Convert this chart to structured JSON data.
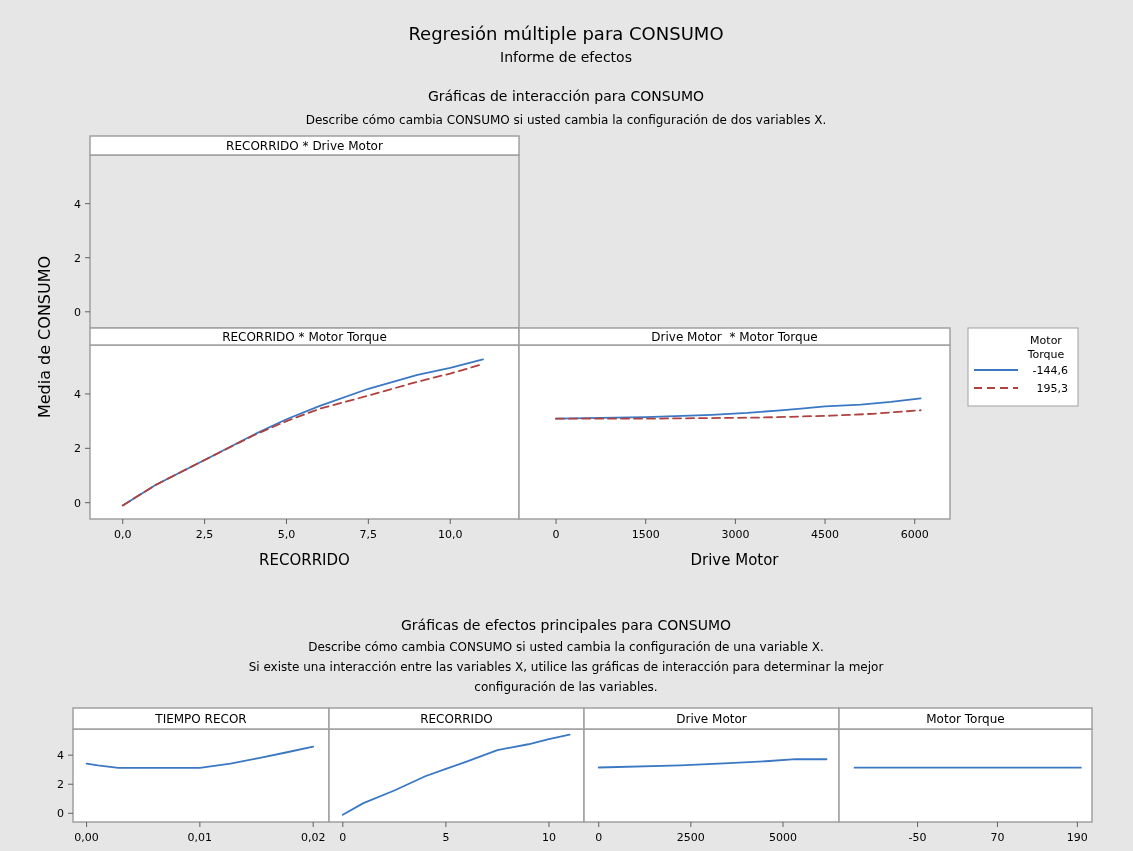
{
  "chart_data": [
    {
      "type": "line",
      "title": "RECORRIDO * Drive Motor",
      "ylabel": "Media de CONSUMO",
      "annotations": [
        "Regresión múltiple para CONSUMO",
        "Informe de efectos",
        "Gráficas de interacción para CONSUMO",
        "Describe cómo cambia CONSUMO si usted cambia la configuración de dos variables X."
      ],
      "xlim": [
        -1.0,
        12.1
      ],
      "ylim": [
        -0.6,
        5.8
      ],
      "yticks": [
        0,
        2,
        4
      ],
      "tick_labels": "y"
    },
    {
      "type": "line",
      "title": "RECORRIDO * Motor Torque",
      "xlabel": "RECORRIDO",
      "xlim": [
        -1.0,
        12.1
      ],
      "xticks": [
        {
          "value": 0,
          "label": "0,0"
        },
        {
          "value": 2.5,
          "label": "2,5"
        },
        {
          "value": 5,
          "label": "5,0"
        },
        {
          "value": 7.5,
          "label": "7,5"
        },
        {
          "value": 10,
          "label": "10,0"
        }
      ],
      "ylim": [
        -0.6,
        5.8
      ],
      "yticks": [
        0,
        2,
        4
      ],
      "series": [
        {
          "color": "#3a78c3",
          "line_style": "solid",
          "x": [
            0,
            1,
            2.5,
            4,
            5,
            6,
            7.5,
            9,
            10,
            11
          ],
          "values": [
            -0.1,
            0.65,
            1.57,
            2.5,
            3.07,
            3.55,
            4.19,
            4.7,
            4.96,
            5.27
          ]
        },
        {
          "color": "#b0413e",
          "line_style": "dashed",
          "x": [
            0,
            1,
            2.5,
            4,
            5,
            6,
            7.5,
            9,
            10,
            11
          ],
          "values": [
            -0.1,
            0.65,
            1.57,
            2.48,
            3.0,
            3.45,
            3.94,
            4.45,
            4.75,
            5.1
          ]
        }
      ]
    },
    {
      "type": "line",
      "title": "Drive Motor  * Motor Torque",
      "xlabel": "Drive Motor",
      "legend": "right",
      "legend_title": "Motor Torque",
      "xlim": [
        -620,
        6590
      ],
      "xticks": [
        0,
        1500,
        3000,
        4500,
        6000
      ],
      "ylim": [
        -0.6,
        5.8
      ],
      "tick_labels": "x",
      "series": [
        {
          "name": "-144,6",
          "color": "#3a78c3",
          "line_style": "solid",
          "x": [
            0,
            1500,
            2600,
            3200,
            3700,
            4100,
            4500,
            5100,
            5600,
            6100
          ],
          "values": [
            3.09,
            3.15,
            3.23,
            3.3,
            3.39,
            3.46,
            3.54,
            3.61,
            3.71,
            3.84
          ]
        },
        {
          "name": "195,3",
          "color": "#b0413e",
          "line_style": "dashed",
          "x": [
            0,
            1500,
            3400,
            4600,
            5300,
            5600,
            6100
          ],
          "values": [
            3.09,
            3.09,
            3.13,
            3.2,
            3.27,
            3.32,
            3.4
          ]
        }
      ]
    },
    {
      "type": "line",
      "title": "TIEMPO RECOR",
      "annotations": [
        "Gráficas de efectos principales para CONSUMO",
        "Describe cómo cambia CONSUMO si usted cambia la configuración de una variable X.",
        "Si existe una interacción entre las variables X, utilice las gráficas de interacción para determinar la mejor configuración de las variables."
      ],
      "xlim": [
        -0.0012,
        0.0214
      ],
      "xticks": [
        {
          "value": 0,
          "label": "0,00"
        },
        {
          "value": 0.01,
          "label": "0,01"
        },
        {
          "value": 0.02,
          "label": "0,02"
        }
      ],
      "ylim": [
        -0.6,
        5.8
      ],
      "yticks": [
        0,
        2,
        4
      ],
      "series": [
        {
          "color": "#3a78c3",
          "x": [
            0,
            0.001,
            0.0028,
            0.01,
            0.0127,
            0.0152,
            0.0177,
            0.02
          ],
          "values": [
            3.42,
            3.3,
            3.13,
            3.13,
            3.42,
            3.8,
            4.2,
            4.59
          ]
        }
      ]
    },
    {
      "type": "line",
      "title": "RECORRIDO",
      "xlim": [
        -0.67,
        11.7
      ],
      "xticks": [
        0,
        5,
        10
      ],
      "ylim": [
        -0.6,
        5.8
      ],
      "tick_labels": "x",
      "series": [
        {
          "color": "#3a78c3",
          "x": [
            0,
            1,
            2.5,
            4,
            5,
            6,
            7.5,
            9,
            10,
            11
          ],
          "values": [
            -0.1,
            0.7,
            1.57,
            2.55,
            3.06,
            3.55,
            4.35,
            4.75,
            5.11,
            5.41
          ]
        }
      ]
    },
    {
      "type": "line",
      "title": "Drive Motor",
      "xlim": [
        -400,
        6520
      ],
      "xticks": [
        0,
        2500,
        5000
      ],
      "ylim": [
        -0.6,
        5.8
      ],
      "tick_labels": "x",
      "series": [
        {
          "color": "#3a78c3",
          "x": [
            0,
            2220,
            3400,
            4530,
            5350,
            6180
          ],
          "values": [
            3.15,
            3.3,
            3.44,
            3.58,
            3.72,
            3.72
          ]
        }
      ]
    },
    {
      "type": "line",
      "title": "Motor Torque",
      "xlim": [
        -168,
        212
      ],
      "xticks": [
        -50,
        70,
        190
      ],
      "ylim": [
        -0.6,
        5.8
      ],
      "tick_labels": "x",
      "series": [
        {
          "color": "#3a78c3",
          "x": [
            -144.6,
            195.3
          ],
          "values": [
            3.14,
            3.14
          ]
        }
      ]
    }
  ]
}
